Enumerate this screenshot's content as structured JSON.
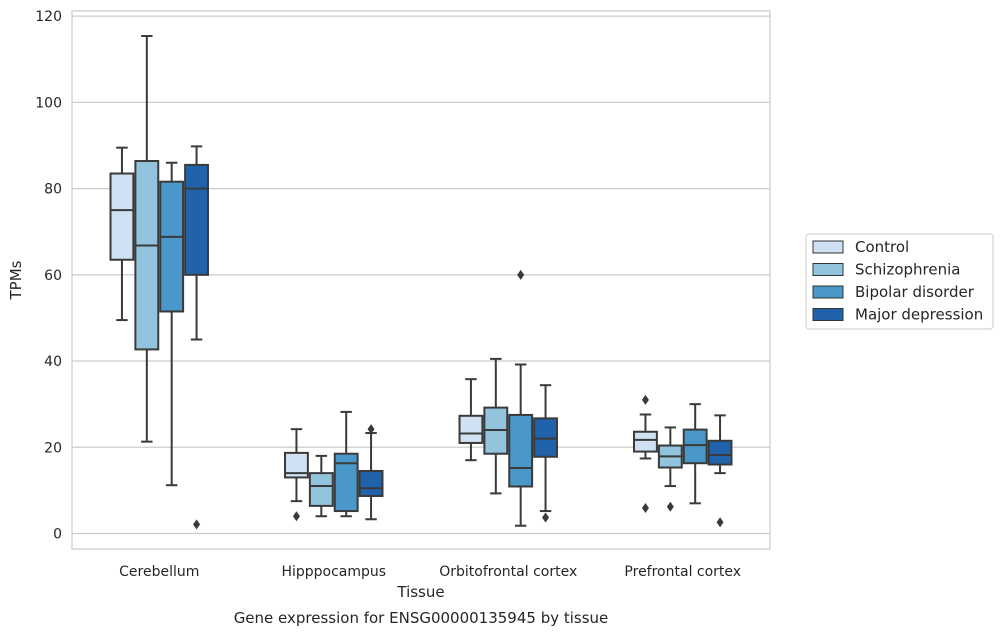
{
  "chart_data": {
    "type": "boxplot",
    "title": "",
    "caption": "Gene expression for ENSG00000135945 by tissue",
    "xlabel": "Tissue",
    "ylabel": "TPMs",
    "ylim": [
      -3.6,
      121.2
    ],
    "yticks": [
      0,
      20,
      40,
      60,
      80,
      100,
      120
    ],
    "grid": true,
    "legend_position": "right",
    "categories": [
      "Cerebellum",
      "Hipppocampus",
      "Orbitofrontal cortex",
      "Prefrontal cortex"
    ],
    "series": [
      {
        "name": "Control",
        "color": "#cfe1f2",
        "boxes": [
          {
            "whislo": 49.5,
            "q1": 63.5,
            "med": 75,
            "q3": 83.5,
            "whishi": 89.5,
            "fliers": []
          },
          {
            "whislo": 7.5,
            "q1": 13,
            "med": 14,
            "q3": 18.7,
            "whishi": 24.2,
            "fliers": [
              4
            ]
          },
          {
            "whislo": 17,
            "q1": 21,
            "med": 23.2,
            "q3": 27.3,
            "whishi": 35.8,
            "fliers": []
          },
          {
            "whislo": 17.4,
            "q1": 19,
            "med": 21.7,
            "q3": 23.6,
            "whishi": 27.6,
            "fliers": [
              31,
              5.9
            ]
          }
        ]
      },
      {
        "name": "Schizophrenia",
        "color": "#93c4de",
        "boxes": [
          {
            "whislo": 21.3,
            "q1": 42.7,
            "med": 66.8,
            "q3": 86.4,
            "whishi": 115.4,
            "fliers": []
          },
          {
            "whislo": 4,
            "q1": 6.4,
            "med": 11,
            "q3": 14,
            "whishi": 18,
            "fliers": []
          },
          {
            "whislo": 9.3,
            "q1": 18.5,
            "med": 24,
            "q3": 29.2,
            "whishi": 40.5,
            "fliers": []
          },
          {
            "whislo": 11,
            "q1": 15.3,
            "med": 17.9,
            "q3": 20.4,
            "whishi": 24.6,
            "fliers": [
              6.2
            ]
          }
        ]
      },
      {
        "name": "Bipolar disorder",
        "color": "#4a98c9",
        "boxes": [
          {
            "whislo": 11.2,
            "q1": 51.5,
            "med": 68.8,
            "q3": 81.6,
            "whishi": 86,
            "fliers": []
          },
          {
            "whislo": 4,
            "q1": 5.2,
            "med": 16.3,
            "q3": 18.5,
            "whishi": 28.2,
            "fliers": []
          },
          {
            "whislo": 1.8,
            "q1": 10.9,
            "med": 15.2,
            "q3": 27.5,
            "whishi": 39.2,
            "fliers": [
              60
            ]
          },
          {
            "whislo": 7,
            "q1": 16.3,
            "med": 20.5,
            "q3": 24.1,
            "whishi": 30,
            "fliers": []
          }
        ]
      },
      {
        "name": "Major depression",
        "color": "#2163aa",
        "boxes": [
          {
            "whislo": 45,
            "q1": 60,
            "med": 80,
            "q3": 85.5,
            "whishi": 89.8,
            "fliers": [
              2.1
            ]
          },
          {
            "whislo": 3.3,
            "q1": 8.7,
            "med": 10.5,
            "q3": 14.5,
            "whishi": 23.3,
            "fliers": [
              24.2
            ]
          },
          {
            "whislo": 5.2,
            "q1": 17.8,
            "med": 22,
            "q3": 26.7,
            "whishi": 34.4,
            "fliers": [
              3.7
            ]
          },
          {
            "whislo": 14,
            "q1": 16,
            "med": 18.2,
            "q3": 21.5,
            "whishi": 27.4,
            "fliers": [
              2.6
            ]
          }
        ]
      }
    ]
  }
}
